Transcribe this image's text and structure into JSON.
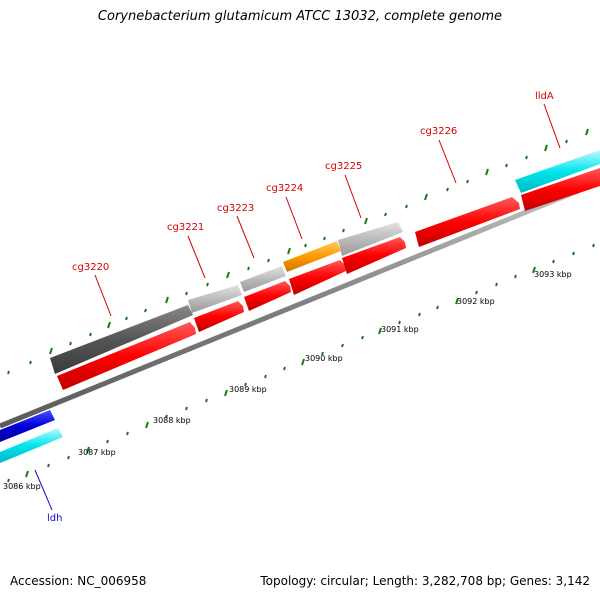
{
  "title": "Corynebacterium glutamicum ATCC 13032, complete genome",
  "footer": {
    "accession": "Accession: NC_006958",
    "summary": "Topology: circular; Length: 3,282,708 bp; Genes: 3,142"
  },
  "gene_labels": [
    {
      "name": "cg3220",
      "color": "#d40000"
    },
    {
      "name": "cg3221",
      "color": "#d40000"
    },
    {
      "name": "cg3223",
      "color": "#d40000"
    },
    {
      "name": "cg3224",
      "color": "#d40000"
    },
    {
      "name": "cg3225",
      "color": "#d40000"
    },
    {
      "name": "cg3226",
      "color": "#d40000"
    },
    {
      "name": "lldA",
      "color": "#d40000"
    },
    {
      "name": "ldh",
      "color": "#1010c8"
    }
  ],
  "scale_labels": [
    "3086 kbp",
    "3087 kbp",
    "3088 kbp",
    "3089 kbp",
    "3090 kbp",
    "3091 kbp",
    "3092 kbp",
    "3093 kbp"
  ],
  "colors": {
    "cds": "#ff0000",
    "backbone": "#808080",
    "tick": "#1a7a1a",
    "cyan_feature": "#00e5ee",
    "blue_feature": "#0000dd",
    "orange_feature": "#ff9900",
    "dark_gray_feature": "#555555",
    "light_gray_feature": "#bbbbbb"
  }
}
